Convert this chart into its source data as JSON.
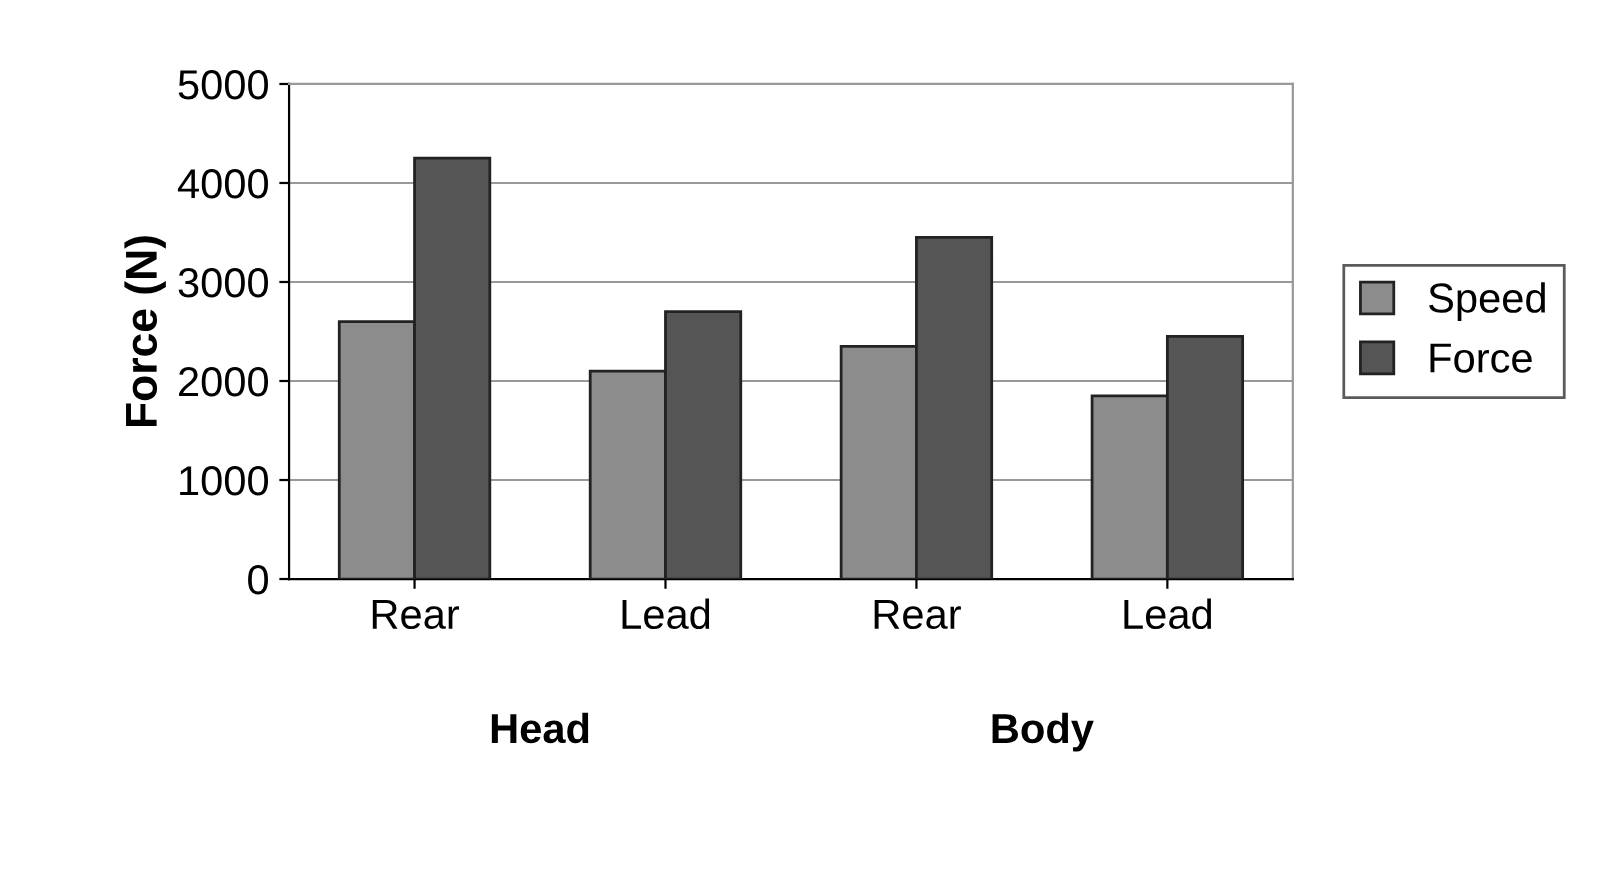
{
  "chart_data": {
    "type": "bar",
    "ylabel": "Force (N)",
    "categories": [
      "Rear",
      "Lead",
      "Rear",
      "Lead"
    ],
    "series": [
      {
        "name": "Speed",
        "color": "#8c8c8c",
        "values": [
          2600,
          2100,
          2350,
          1850
        ]
      },
      {
        "name": "Force",
        "color": "#555555",
        "values": [
          4250,
          2700,
          3450,
          2450
        ]
      }
    ],
    "annotations": [
      "Head",
      "Body"
    ],
    "ylim": [
      0,
      5000
    ],
    "yticks": [
      0,
      1000,
      2000,
      3000,
      4000,
      5000
    ],
    "grid": "y",
    "legend": "right"
  }
}
